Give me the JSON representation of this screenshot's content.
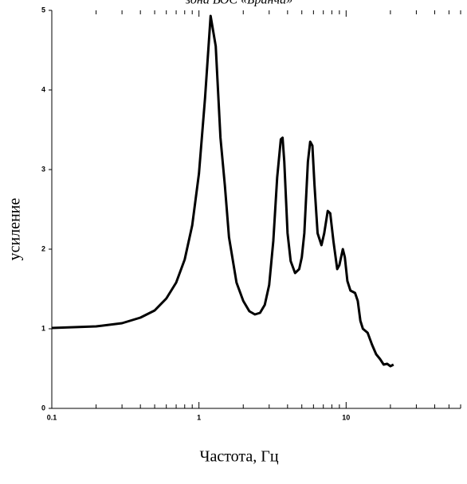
{
  "chart_data": {
    "type": "line",
    "title": "зона ВОС «Бранча»",
    "x_label": "Частота, Гц",
    "y_label": "усиление",
    "x_scale": "log",
    "minor_ticks": true,
    "xlim": [
      0.1,
      60
    ],
    "ylim": [
      0,
      5
    ],
    "xticks": [
      0.1,
      1,
      10
    ],
    "yticks": [
      0,
      1,
      2,
      3,
      4,
      5
    ],
    "series": [
      {
        "color": "#000000",
        "x": [
          0.1,
          0.2,
          0.3,
          0.4,
          0.5,
          0.6,
          0.7,
          0.8,
          0.9,
          1.0,
          1.1,
          1.2,
          1.3,
          1.4,
          1.5,
          1.6,
          1.8,
          2.0,
          2.2,
          2.4,
          2.6,
          2.8,
          3.0,
          3.2,
          3.4,
          3.6,
          3.7,
          3.8,
          4.0,
          4.2,
          4.5,
          4.8,
          5.0,
          5.2,
          5.5,
          5.7,
          5.9,
          6.1,
          6.4,
          6.8,
          7.1,
          7.5,
          7.8,
          8.2,
          8.7,
          9.0,
          9.5,
          9.8,
          10.2,
          10.7,
          11.5,
          12,
          12.5,
          13,
          14,
          15,
          16,
          17,
          18,
          19,
          20,
          21
        ],
        "values": [
          1.01,
          1.03,
          1.07,
          1.14,
          1.23,
          1.38,
          1.58,
          1.87,
          2.3,
          2.95,
          3.9,
          4.93,
          4.55,
          3.4,
          2.8,
          2.15,
          1.58,
          1.35,
          1.22,
          1.18,
          1.2,
          1.3,
          1.55,
          2.1,
          2.9,
          3.38,
          3.4,
          3.1,
          2.2,
          1.85,
          1.7,
          1.75,
          1.9,
          2.2,
          3.1,
          3.35,
          3.3,
          2.8,
          2.2,
          2.05,
          2.2,
          2.48,
          2.45,
          2.1,
          1.75,
          1.8,
          2.0,
          1.9,
          1.6,
          1.48,
          1.45,
          1.35,
          1.1,
          1.0,
          0.95,
          0.8,
          0.68,
          0.62,
          0.55,
          0.56,
          0.53,
          0.55
        ]
      }
    ]
  }
}
